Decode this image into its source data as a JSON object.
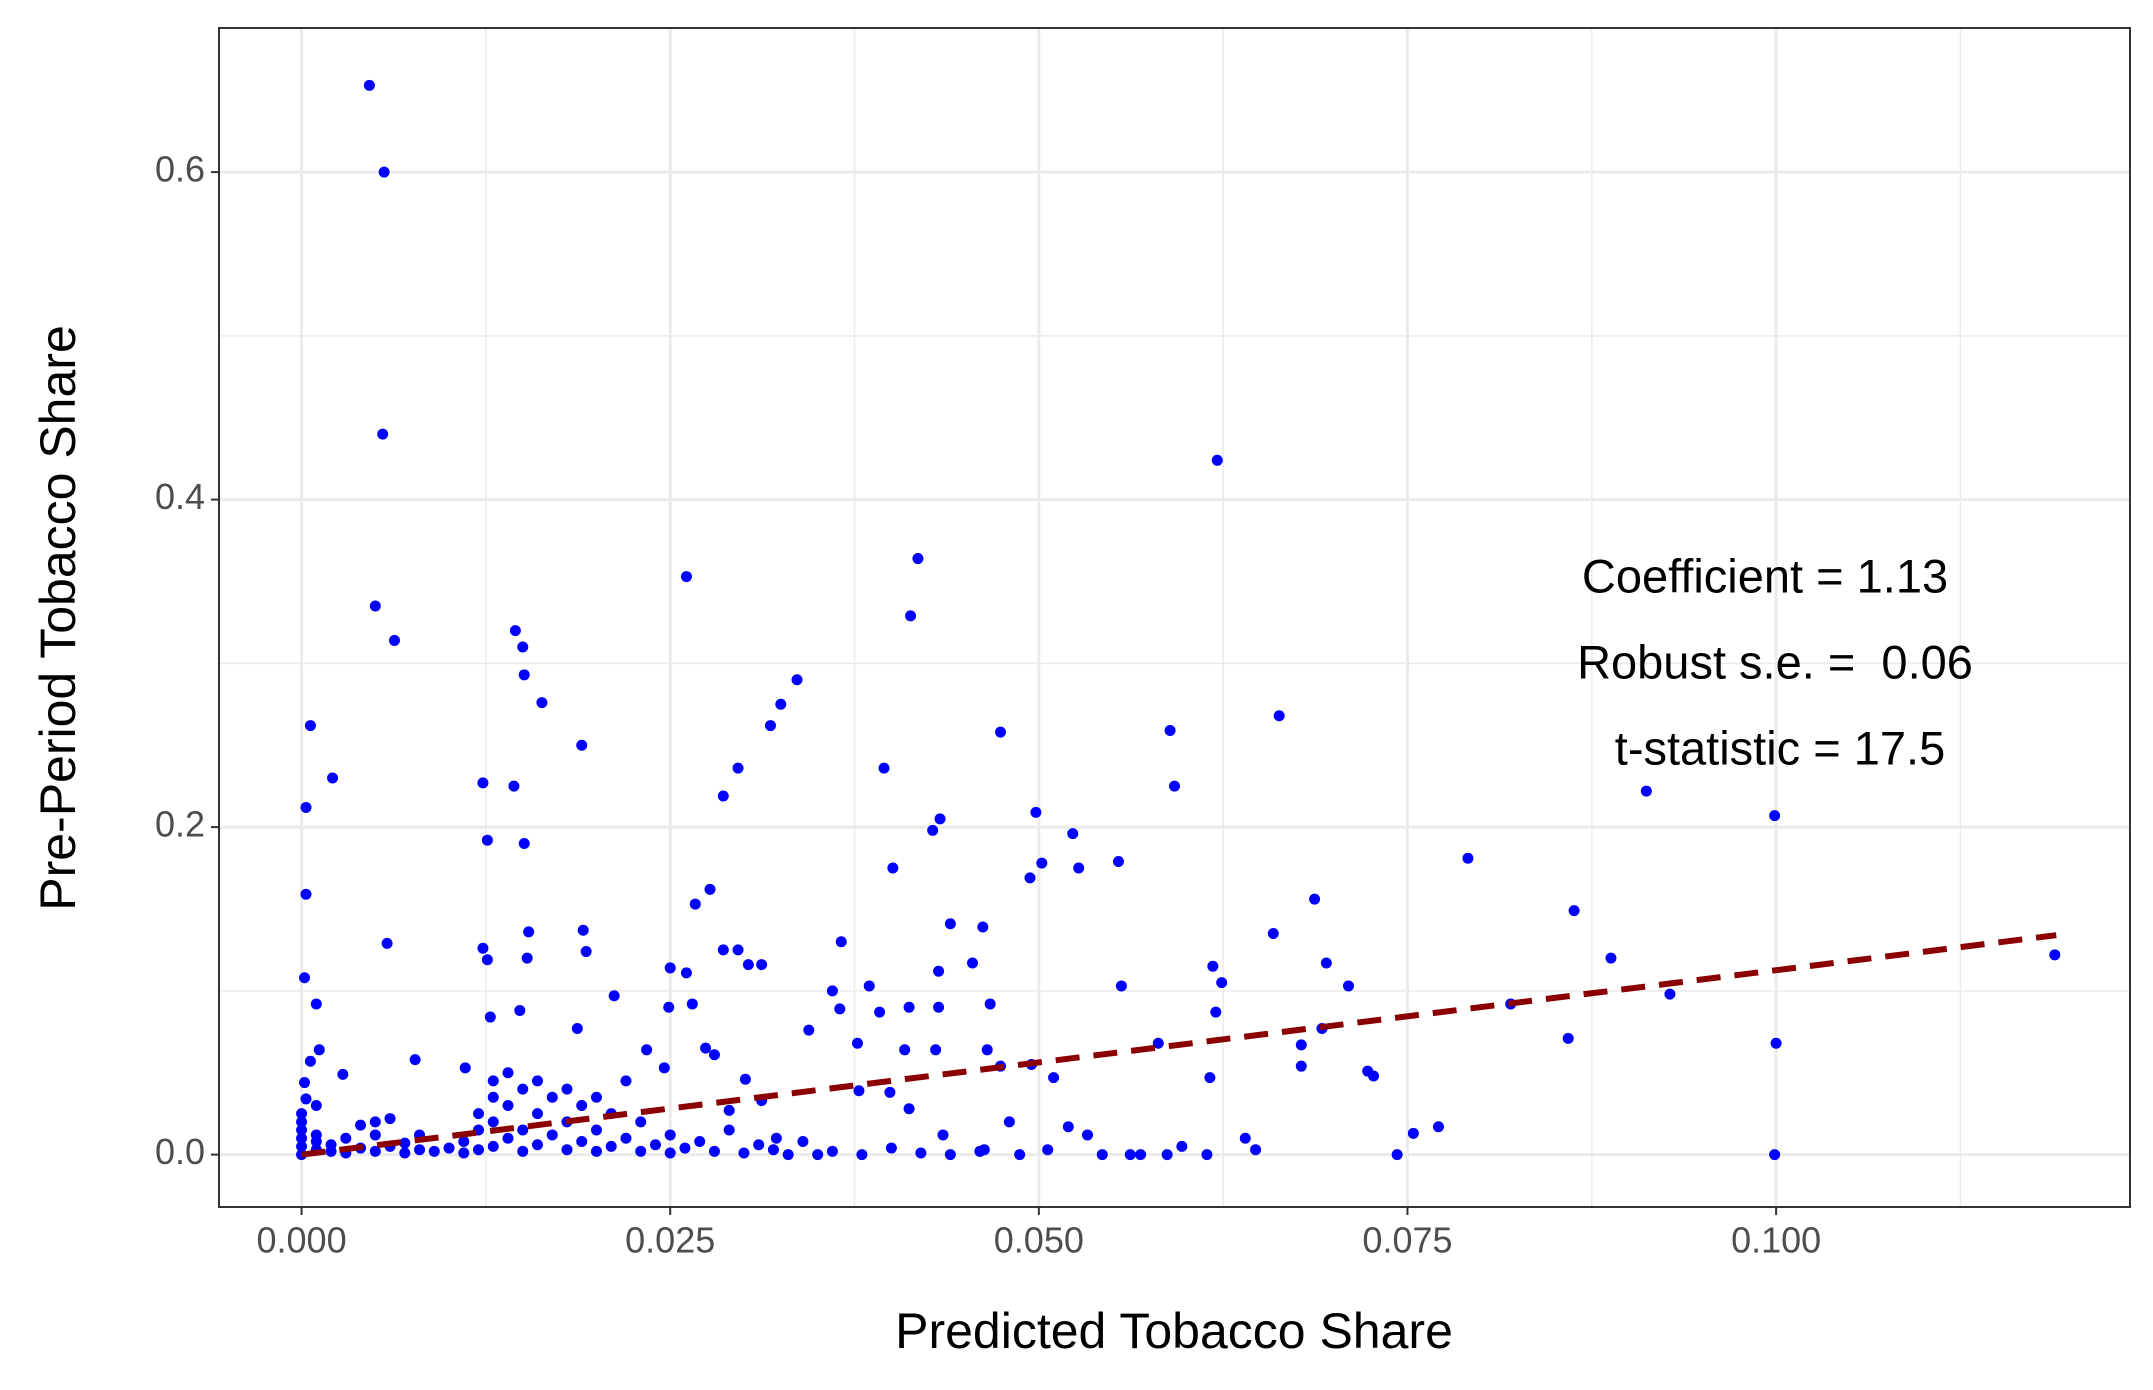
{
  "chart_data": {
    "type": "scatter",
    "x_label": "Predicted Tobacco Share",
    "y_label": "Pre-Period Tobacco Share",
    "annotations": [
      "Coefficient = 1.13",
      "Robust s.e. =  0.06",
      "t-statistic = 17.5"
    ],
    "xlim": [
      -0.0056,
      0.124
    ],
    "ylim": [
      -0.032,
      0.688
    ],
    "xticks": [
      {
        "value": 0,
        "label": "0.000"
      },
      {
        "value": 0.025,
        "label": "0.025"
      },
      {
        "value": 0.05,
        "label": "0.050"
      },
      {
        "value": 0.075,
        "label": "0.075"
      },
      {
        "value": 0.1,
        "label": "0.100"
      }
    ],
    "yticks": [
      {
        "value": 0,
        "label": "0.0"
      },
      {
        "value": 0.2,
        "label": "0.2"
      },
      {
        "value": 0.4,
        "label": "0.4"
      },
      {
        "value": 0.6,
        "label": "0.6"
      }
    ],
    "minor_xticks": [
      0.0125,
      0.0375,
      0.0625,
      0.0875,
      0.1125
    ],
    "minor_yticks": [
      0.1,
      0.3,
      0.5
    ],
    "grid": true,
    "color": "#0000ff",
    "x": [
      0.0046,
      0.0056,
      0.0055,
      0.005,
      0.0063,
      0.0006,
      0.0021,
      0.0003,
      0.0003,
      0.0002,
      0.001,
      0.0058,
      0.0145,
      0.015,
      0.0151,
      0.0163,
      0.019,
      0.0123,
      0.0144,
      0.0126,
      0.0151,
      0.0261,
      0.0418,
      0.0413,
      0.0336,
      0.0325,
      0.0318,
      0.0296,
      0.0286,
      0.0277,
      0.0267,
      0.0395,
      0.0433,
      0.0428,
      0.0401,
      0.0474,
      0.0498,
      0.0523,
      0.0502,
      0.0494,
      0.0527,
      0.0554,
      0.0589,
      0.0592,
      0.0621,
      0.0663,
      0.0687,
      0.0791,
      0.0863,
      0.0912,
      0.0999,
      0.0888,
      0.1189,
      0.0928,
      0.082,
      0.0859,
      0.1,
      0.0999,
      0.0771,
      0.0754,
      0.0743,
      0.0723,
      0.0727,
      0.071,
      0.0695,
      0.0659,
      0.0692,
      0.0678,
      0.0678,
      0.0618,
      0.0624,
      0.062,
      0.0616,
      0.0581,
      0.0556,
      0.064,
      0.0647,
      0.0597,
      0.0614,
      0.051,
      0.0495,
      0.0474,
      0.0462,
      0.0455,
      0.0467,
      0.044,
      0.0432,
      0.0432,
      0.0412,
      0.0409,
      0.043,
      0.0465,
      0.0366,
      0.036,
      0.0365,
      0.0385,
      0.0377,
      0.0344,
      0.0392,
      0.0303,
      0.0312,
      0.0286,
      0.0296,
      0.0265,
      0.025,
      0.0261,
      0.0249,
      0.0274,
      0.028,
      0.0212,
      0.0191,
      0.0193,
      0.0154,
      0.0153,
      0.0123,
      0.0126,
      0.0148,
      0.0128,
      0.0111,
      0.0077,
      0.0028,
      0.0012,
      0.0006,
      0.0002,
      0.0003,
      0.0187,
      0.0234,
      0.0246,
      0.0301,
      0.0312,
      0.029,
      0.0378,
      0.0399,
      0.0412,
      0.0435,
      0.048,
      0.052,
      0.0533,
      0.0506,
      0.0543,
      0.0562,
      0.0569,
      0.0587,
      0.0487,
      0.0463,
      0.035,
      0.0322,
      0.0,
      0.0,
      0.0,
      0.0,
      0.0,
      0.0,
      0.001,
      0.001,
      0.001,
      0.001,
      0.002,
      0.002,
      0.003,
      0.003,
      0.004,
      0.004,
      0.005,
      0.005,
      0.005,
      0.006,
      0.006,
      0.007,
      0.007,
      0.008,
      0.008,
      0.009,
      0.01,
      0.011,
      0.011,
      0.012,
      0.012,
      0.012,
      0.013,
      0.013,
      0.013,
      0.013,
      0.014,
      0.014,
      0.014,
      0.015,
      0.015,
      0.015,
      0.016,
      0.016,
      0.016,
      0.017,
      0.017,
      0.018,
      0.018,
      0.018,
      0.019,
      0.019,
      0.02,
      0.02,
      0.02,
      0.021,
      0.021,
      0.022,
      0.022,
      0.023,
      0.023,
      0.024,
      0.025,
      0.025,
      0.026,
      0.027,
      0.028,
      0.029,
      0.03,
      0.031,
      0.032,
      0.033,
      0.034,
      0.036,
      0.038,
      0.04,
      0.042,
      0.044,
      0.046
    ],
    "y": [
      0.653,
      0.6,
      0.44,
      0.335,
      0.314,
      0.262,
      0.23,
      0.212,
      0.159,
      0.108,
      0.092,
      0.129,
      0.32,
      0.31,
      0.293,
      0.276,
      0.25,
      0.227,
      0.225,
      0.192,
      0.19,
      0.353,
      0.364,
      0.329,
      0.29,
      0.275,
      0.262,
      0.236,
      0.219,
      0.162,
      0.153,
      0.236,
      0.205,
      0.198,
      0.175,
      0.258,
      0.209,
      0.196,
      0.178,
      0.169,
      0.175,
      0.179,
      0.259,
      0.225,
      0.424,
      0.268,
      0.156,
      0.181,
      0.149,
      0.222,
      0.207,
      0.12,
      0.122,
      0.098,
      0.092,
      0.071,
      0.068,
      0,
      0.017,
      0.013,
      0,
      0.051,
      0.048,
      0.103,
      0.117,
      0.135,
      0.077,
      0.067,
      0.054,
      0.115,
      0.105,
      0.087,
      0.047,
      0.068,
      0.103,
      0.01,
      0.003,
      0.005,
      0,
      0.047,
      0.055,
      0.054,
      0.139,
      0.117,
      0.092,
      0.141,
      0.112,
      0.09,
      0.09,
      0.064,
      0.064,
      0.064,
      0.13,
      0.1,
      0.089,
      0.103,
      0.068,
      0.076,
      0.087,
      0.116,
      0.116,
      0.125,
      0.125,
      0.092,
      0.114,
      0.111,
      0.09,
      0.065,
      0.061,
      0.097,
      0.137,
      0.124,
      0.136,
      0.12,
      0.126,
      0.119,
      0.088,
      0.084,
      0.053,
      0.058,
      0.049,
      0.064,
      0.057,
      0.044,
      0.034,
      0.077,
      0.064,
      0.053,
      0.046,
      0.033,
      0.027,
      0.039,
      0.038,
      0.028,
      0.012,
      0.02,
      0.017,
      0.012,
      0.003,
      0,
      0,
      0,
      0,
      0,
      0.003,
      0,
      0.01,
      0.0,
      0.005,
      0.01,
      0.015,
      0.02,
      0.025,
      0.003,
      0.008,
      0.012,
      0.03,
      0.002,
      0.006,
      0.001,
      0.01,
      0.004,
      0.018,
      0.002,
      0.012,
      0.02,
      0.005,
      0.022,
      0.001,
      0.007,
      0.003,
      0.012,
      0.002,
      0.004,
      0.001,
      0.008,
      0.003,
      0.015,
      0.025,
      0.005,
      0.02,
      0.035,
      0.045,
      0.01,
      0.03,
      0.05,
      0.002,
      0.015,
      0.04,
      0.006,
      0.025,
      0.045,
      0.012,
      0.035,
      0.003,
      0.02,
      0.04,
      0.008,
      0.03,
      0.002,
      0.015,
      0.035,
      0.005,
      0.025,
      0.01,
      0.045,
      0.002,
      0.02,
      0.006,
      0.001,
      0.012,
      0.004,
      0.008,
      0.002,
      0.015,
      0.001,
      0.006,
      0.003,
      0.0,
      0.008,
      0.002,
      0.0,
      0.004,
      0.001,
      0.0,
      0.002
    ],
    "trend": {
      "x": [
        0,
        0.119
      ],
      "y": [
        0,
        0.134
      ],
      "color": "#8b0000",
      "dashed": true
    }
  }
}
